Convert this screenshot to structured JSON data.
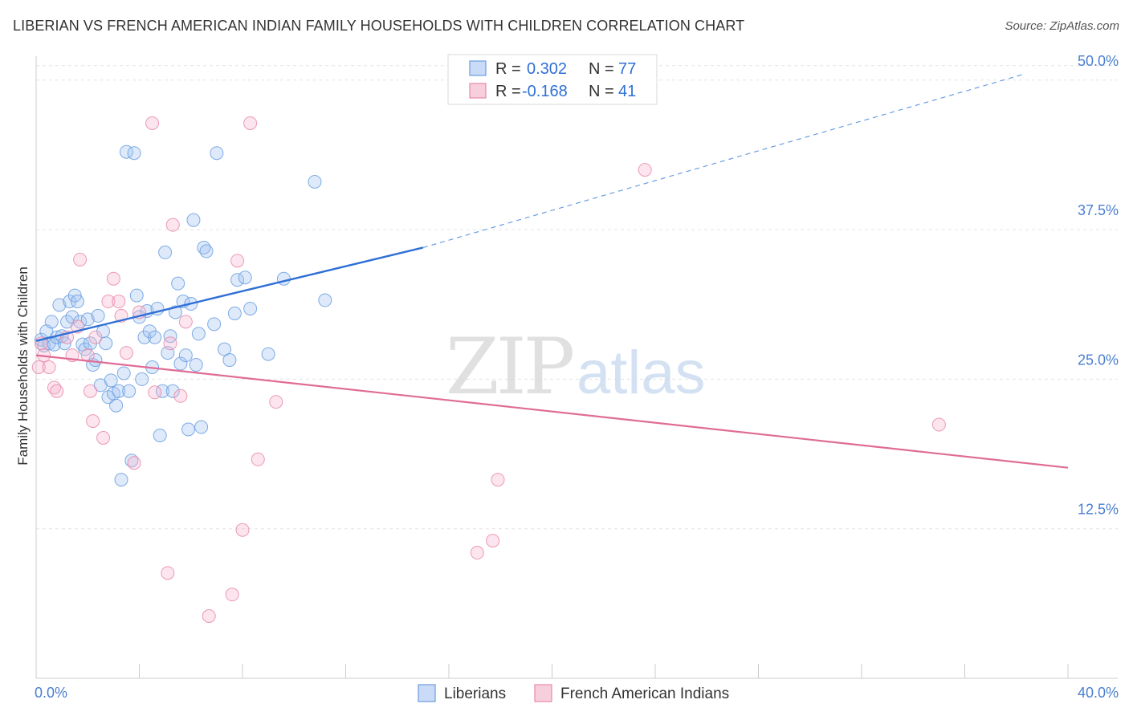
{
  "header": {
    "title": "LIBERIAN VS FRENCH AMERICAN INDIAN FAMILY HOUSEHOLDS WITH CHILDREN CORRELATION CHART",
    "source": "Source: ZipAtlas.com"
  },
  "watermark": {
    "zip": "ZIP",
    "atlas": "atlas"
  },
  "legend": {
    "r_label": "R =",
    "n_label": "N =",
    "rows": [
      {
        "r": "0.302",
        "n": "77",
        "color": "#6a9de0"
      },
      {
        "r": "-0.168",
        "n": "41",
        "color": "#e889a8"
      }
    ]
  },
  "chart_data": {
    "type": "scatter",
    "title": "LIBERIAN VS FRENCH AMERICAN INDIAN FAMILY HOUSEHOLDS WITH CHILDREN CORRELATION CHART",
    "xlabel": "",
    "ylabel": "Family Households with Children",
    "xlim": [
      0,
      40
    ],
    "ylim": [
      0,
      52
    ],
    "x_ticks": [
      "0.0%",
      "40.0%"
    ],
    "y_ticks": [
      {
        "value": 12.5,
        "label": "12.5%"
      },
      {
        "value": 25.0,
        "label": "25.0%"
      },
      {
        "value": 37.5,
        "label": "37.5%"
      },
      {
        "value": 50.0,
        "label": "50.0%"
      }
    ],
    "grid": true,
    "legend_position": "top-center",
    "series": [
      {
        "name": "Liberians",
        "color": "#6a9de0",
        "trend": {
          "x0": 0,
          "y0": 28.2,
          "x1": 15,
          "y1": 36.0,
          "dashed_to_x": 38.3,
          "dashed_to_y": 50.5
        },
        "points": [
          [
            0.2,
            28.3
          ],
          [
            0.3,
            27.8
          ],
          [
            0.4,
            29.0
          ],
          [
            0.5,
            28.0
          ],
          [
            0.6,
            29.8
          ],
          [
            0.7,
            27.9
          ],
          [
            0.8,
            28.5
          ],
          [
            0.9,
            31.2
          ],
          [
            1.0,
            28.6
          ],
          [
            1.1,
            28.0
          ],
          [
            1.2,
            29.8
          ],
          [
            1.3,
            31.5
          ],
          [
            1.4,
            30.2
          ],
          [
            1.5,
            32.0
          ],
          [
            1.6,
            31.5
          ],
          [
            1.7,
            29.8
          ],
          [
            1.8,
            27.9
          ],
          [
            1.9,
            27.5
          ],
          [
            2.0,
            30.0
          ],
          [
            2.1,
            28.0
          ],
          [
            2.2,
            26.2
          ],
          [
            2.3,
            26.6
          ],
          [
            2.4,
            30.3
          ],
          [
            2.5,
            24.5
          ],
          [
            2.6,
            29.0
          ],
          [
            2.7,
            28.0
          ],
          [
            2.8,
            23.5
          ],
          [
            2.9,
            24.9
          ],
          [
            3.0,
            23.8
          ],
          [
            3.1,
            22.8
          ],
          [
            3.2,
            24.0
          ],
          [
            3.3,
            16.6
          ],
          [
            3.4,
            25.5
          ],
          [
            3.5,
            44.0
          ],
          [
            3.6,
            24.0
          ],
          [
            3.7,
            18.2
          ],
          [
            3.8,
            43.9
          ],
          [
            3.9,
            32.0
          ],
          [
            4.0,
            30.2
          ],
          [
            4.1,
            25.0
          ],
          [
            4.2,
            28.5
          ],
          [
            4.3,
            30.7
          ],
          [
            4.4,
            29.0
          ],
          [
            4.5,
            26.0
          ],
          [
            4.6,
            28.5
          ],
          [
            4.7,
            30.9
          ],
          [
            4.8,
            20.3
          ],
          [
            4.9,
            24.0
          ],
          [
            5.0,
            35.6
          ],
          [
            5.1,
            27.2
          ],
          [
            5.2,
            28.6
          ],
          [
            5.3,
            24.0
          ],
          [
            5.4,
            30.6
          ],
          [
            5.5,
            33.0
          ],
          [
            5.6,
            26.3
          ],
          [
            5.7,
            31.5
          ],
          [
            5.8,
            27.0
          ],
          [
            5.9,
            20.8
          ],
          [
            6.0,
            31.3
          ],
          [
            6.1,
            38.3
          ],
          [
            6.2,
            26.2
          ],
          [
            6.3,
            28.8
          ],
          [
            6.4,
            21.0
          ],
          [
            6.5,
            36.0
          ],
          [
            6.6,
            35.7
          ],
          [
            6.9,
            29.6
          ],
          [
            7.0,
            43.9
          ],
          [
            7.3,
            27.5
          ],
          [
            7.5,
            26.6
          ],
          [
            7.7,
            30.5
          ],
          [
            7.8,
            33.3
          ],
          [
            8.1,
            33.5
          ],
          [
            8.3,
            30.9
          ],
          [
            9.0,
            27.1
          ],
          [
            9.6,
            33.4
          ],
          [
            10.8,
            41.5
          ],
          [
            11.2,
            31.6
          ]
        ]
      },
      {
        "name": "French American Indians",
        "color": "#e889a8",
        "trend": {
          "x0": 0,
          "y0": 27.0,
          "x1": 40,
          "y1": 17.6
        },
        "points": [
          [
            0.1,
            26.0
          ],
          [
            0.2,
            28.0
          ],
          [
            0.3,
            27.0
          ],
          [
            0.5,
            26.0
          ],
          [
            0.7,
            24.3
          ],
          [
            0.8,
            24.0
          ],
          [
            1.2,
            28.5
          ],
          [
            1.4,
            27.0
          ],
          [
            1.6,
            29.4
          ],
          [
            1.7,
            35.0
          ],
          [
            2.0,
            27.0
          ],
          [
            2.1,
            24.0
          ],
          [
            2.2,
            21.5
          ],
          [
            2.3,
            28.5
          ],
          [
            2.6,
            20.1
          ],
          [
            2.8,
            31.5
          ],
          [
            3.0,
            33.4
          ],
          [
            3.2,
            31.5
          ],
          [
            3.3,
            30.3
          ],
          [
            3.5,
            27.2
          ],
          [
            3.8,
            18.0
          ],
          [
            4.0,
            30.6
          ],
          [
            4.5,
            46.4
          ],
          [
            4.6,
            23.9
          ],
          [
            5.1,
            8.8
          ],
          [
            5.2,
            28.0
          ],
          [
            5.3,
            37.9
          ],
          [
            5.6,
            23.6
          ],
          [
            5.8,
            29.8
          ],
          [
            6.7,
            5.2
          ],
          [
            7.6,
            7.0
          ],
          [
            7.8,
            34.9
          ],
          [
            8.0,
            12.4
          ],
          [
            8.3,
            46.4
          ],
          [
            8.6,
            18.3
          ],
          [
            9.3,
            23.1
          ],
          [
            17.1,
            10.5
          ],
          [
            17.7,
            11.5
          ],
          [
            17.9,
            16.6
          ],
          [
            23.6,
            42.5
          ],
          [
            35.0,
            21.2
          ]
        ]
      }
    ]
  }
}
